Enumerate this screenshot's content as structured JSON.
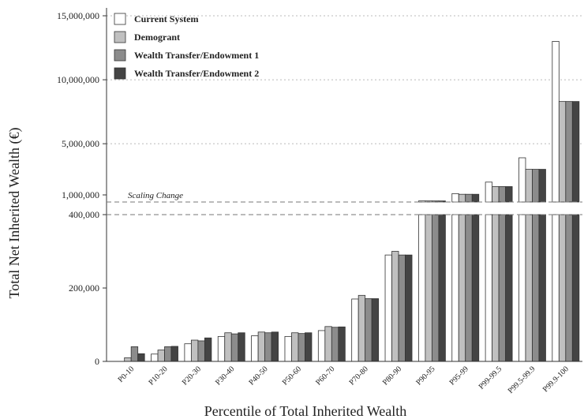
{
  "chart_data": {
    "type": "bar",
    "xlabel": "Percentile of Total Inherited Wealth",
    "ylabel": "Total Net Inherited Wealth (€)",
    "scale_break_label": "Scaling Change",
    "legend_position": "top-left",
    "grid": false,
    "categories": [
      "P0-10",
      "P10-20",
      "P20-30",
      "P30-40",
      "P40-50",
      "P50-60",
      "P60-70",
      "P70-80",
      "P80-90",
      "P90-95",
      "P95-99",
      "P99-99.5",
      "P99.5-99.9",
      "P99.9-100"
    ],
    "lower_axis": {
      "ylim": [
        0,
        400000
      ],
      "ticks": [
        0,
        200000,
        400000
      ],
      "tick_labels": [
        "0",
        "200,000",
        "400,000"
      ]
    },
    "upper_axis": {
      "ylim": [
        0,
        15000000
      ],
      "ticks": [
        1000000,
        5000000,
        10000000,
        15000000
      ],
      "tick_labels": [
        "1,000,000",
        "5,000,000",
        "10,000,000",
        "15,000,000"
      ]
    },
    "series": [
      {
        "name": "Current System",
        "color": "#ffffff",
        "values": [
          0,
          20000,
          48000,
          68000,
          70000,
          68000,
          84000,
          170000,
          290000,
          530000,
          1100000,
          2000000,
          3900000,
          13000000
        ]
      },
      {
        "name": "Demogrant",
        "color": "#c0c0c0",
        "values": [
          10000,
          31000,
          58000,
          78000,
          80000,
          78000,
          95000,
          180000,
          300000,
          530000,
          1050000,
          1650000,
          3000000,
          8300000
        ]
      },
      {
        "name": "Wealth Transfer/Endowment 1",
        "color": "#8c8c8c",
        "values": [
          40000,
          40000,
          56000,
          75000,
          78000,
          76000,
          93000,
          171000,
          290000,
          530000,
          1050000,
          1650000,
          3000000,
          8300000
        ]
      },
      {
        "name": "Wealth Transfer/Endowment 2",
        "color": "#444444",
        "values": [
          21000,
          41000,
          64000,
          78000,
          80000,
          78000,
          94000,
          171000,
          290000,
          530000,
          1050000,
          1650000,
          3000000,
          8300000
        ]
      }
    ]
  }
}
